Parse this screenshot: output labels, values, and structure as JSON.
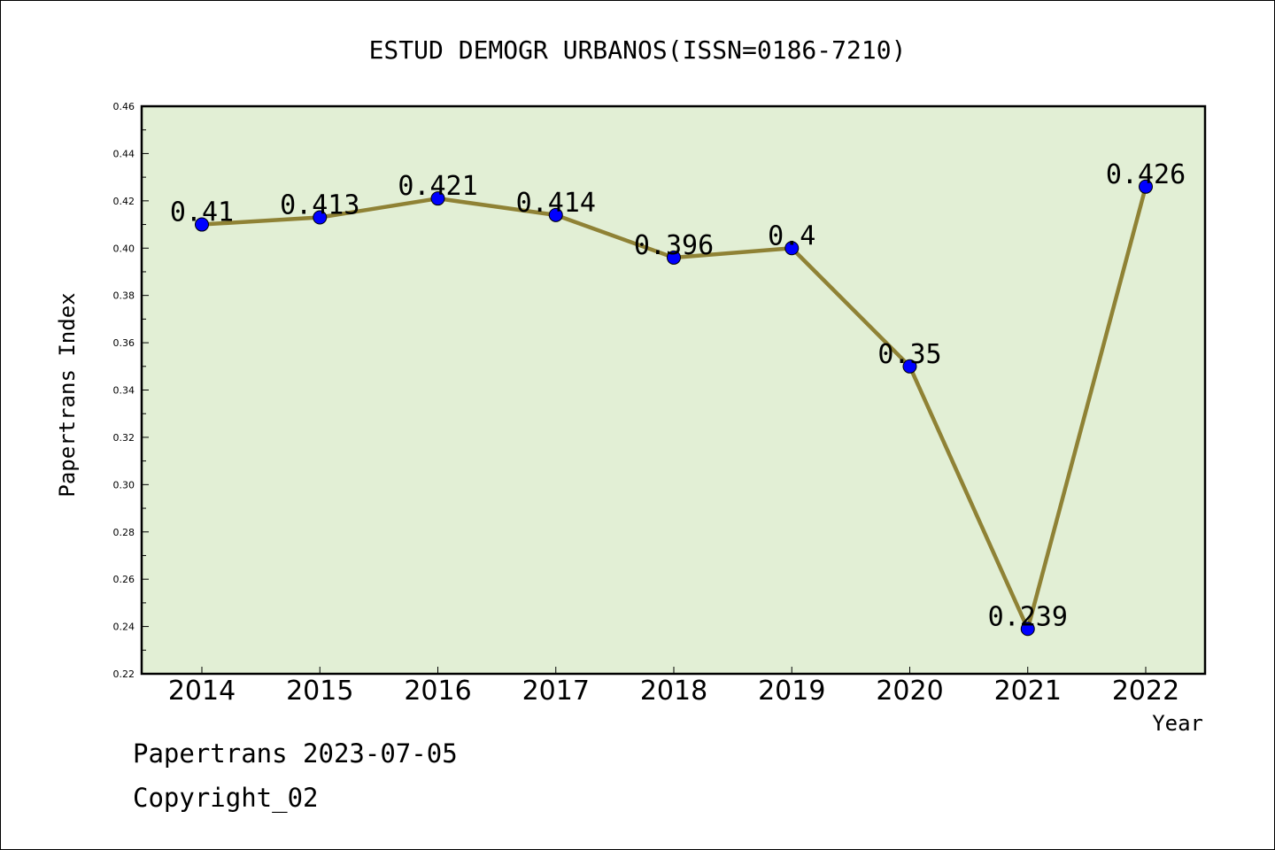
{
  "chart_data": {
    "type": "line",
    "title": "ESTUD DEMOGR URBANOS(ISSN=0186-7210)",
    "xlabel": "Year",
    "ylabel": "Papertrans Index",
    "categories": [
      "2014",
      "2015",
      "2016",
      "2017",
      "2018",
      "2019",
      "2020",
      "2021",
      "2022"
    ],
    "series": [
      {
        "values": [
          0.41,
          0.413,
          0.421,
          0.414,
          0.396,
          0.4,
          0.35,
          0.239,
          0.426
        ],
        "labels": [
          "0.41",
          "0.413",
          "0.421",
          "0.414",
          "0.396",
          "0.4",
          "0.35",
          "0.239",
          "0.426"
        ]
      }
    ],
    "ylim": [
      0.22,
      0.46
    ],
    "yticks": [
      "0.22",
      "0.24",
      "0.26",
      "0.28",
      "0.30",
      "0.32",
      "0.34",
      "0.36",
      "0.38",
      "0.40",
      "0.42",
      "0.44",
      "0.46"
    ],
    "grid": false,
    "colors": {
      "plot_background": "#e2efd5",
      "line": "#8f8235",
      "marker": "#0000ff"
    }
  },
  "footer": {
    "line1": "Papertrans 2023-07-05",
    "line2": "Copyright_02"
  }
}
